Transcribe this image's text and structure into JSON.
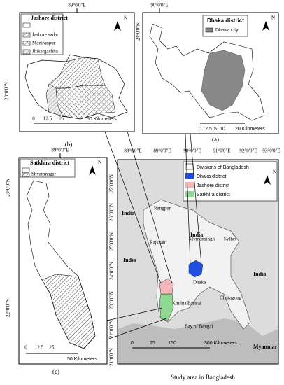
{
  "panel_b": {
    "caption": "(b)",
    "top_label": "89°0'0\"E",
    "side_label": "23°0'0\"N",
    "north": "N",
    "legend": {
      "title": "Jashore district",
      "items": [
        "Jashore sadar",
        "Maniranpur",
        "Jhikargachha"
      ]
    },
    "scale": [
      "0",
      "12.5",
      "25",
      "50 Kilometers"
    ]
  },
  "panel_a": {
    "caption": "(a)",
    "top_label": "90°0'0\"E",
    "side_label": "24°0'0\"N",
    "north": "N",
    "legend": {
      "title": "Dhaka district",
      "items": [
        "Dhaka city"
      ]
    },
    "scale": [
      "0",
      "2.5",
      "5",
      "10",
      "20 Kilometers"
    ]
  },
  "panel_c": {
    "caption": "(c)",
    "top_label": "89°0'0\"E",
    "side_labels": [
      "23°0'0\"N",
      "22°0'0\"N"
    ],
    "north": "N",
    "legend": {
      "title": "Satkhira district",
      "items": [
        "Shyamnagar"
      ]
    },
    "scale": [
      "0",
      "12.5",
      "25",
      "50 Kilometers"
    ]
  },
  "main_map": {
    "caption": "Study area in Bangladesh",
    "north": "N",
    "top_labels": [
      "88°0'0\"E",
      "89°0'0\"E",
      "90°0'0\"E",
      "91°0'0\"E",
      "92°0'0\"E",
      "93°0'0\"E"
    ],
    "side_labels": [
      "27°0'0\"N",
      "26°0'0\"N",
      "25°0'0\"N",
      "24°0'0\"N",
      "23°0'0\"N",
      "22°0'0\"N",
      "21°0'0\"N"
    ],
    "legend": [
      "Divisions of Bangladesh",
      "Dhaka district",
      "Jashore district",
      "Satkhira district"
    ],
    "scale": [
      "0",
      "75",
      "150",
      "300 Kilometers"
    ],
    "places": [
      "India",
      "India",
      "India",
      "India",
      "Myanmar",
      "Rangpur",
      "Rajshahi",
      "Mymensingh",
      "Sylhet",
      "Dhaka",
      "Khulna",
      "Barisal",
      "Chittagong",
      "Bay of Bengal"
    ]
  }
}
